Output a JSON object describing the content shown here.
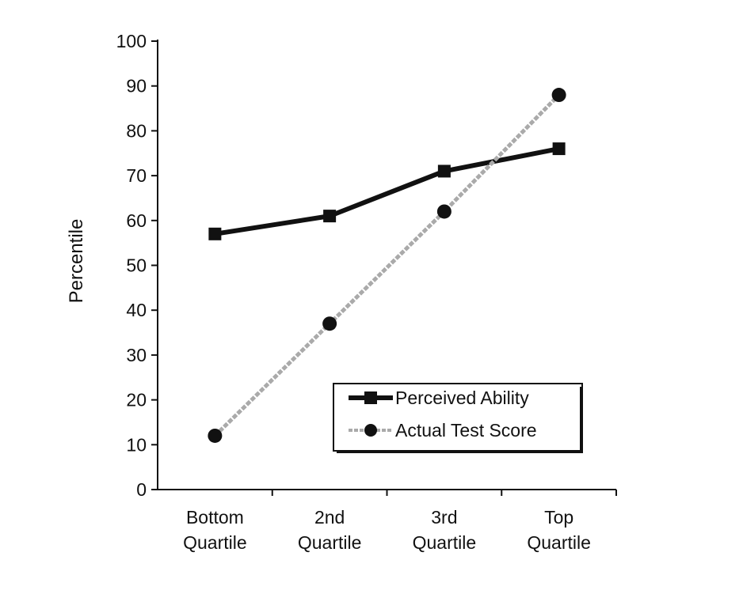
{
  "chart_data": {
    "type": "line",
    "title": "",
    "xlabel": "",
    "ylabel": "Percentile",
    "ylim": [
      0,
      100
    ],
    "yticks": [
      0,
      10,
      20,
      30,
      40,
      50,
      60,
      70,
      80,
      90,
      100
    ],
    "categories": [
      [
        "Bottom",
        "Quartile"
      ],
      [
        "2nd",
        "Quartile"
      ],
      [
        "3rd",
        "Quartile"
      ],
      [
        "Top",
        "Quartile"
      ]
    ],
    "series": [
      {
        "name": "Perceived Ability",
        "values": [
          57,
          61,
          71,
          76
        ],
        "marker": "square",
        "color": "#111111",
        "line_style": "solid"
      },
      {
        "name": "Actual Test Score",
        "values": [
          12,
          37,
          62,
          88
        ],
        "marker": "circle",
        "color": "#aaaaaa",
        "line_style": "dashed"
      }
    ],
    "legend_position": "bottom-right",
    "grid": false
  }
}
